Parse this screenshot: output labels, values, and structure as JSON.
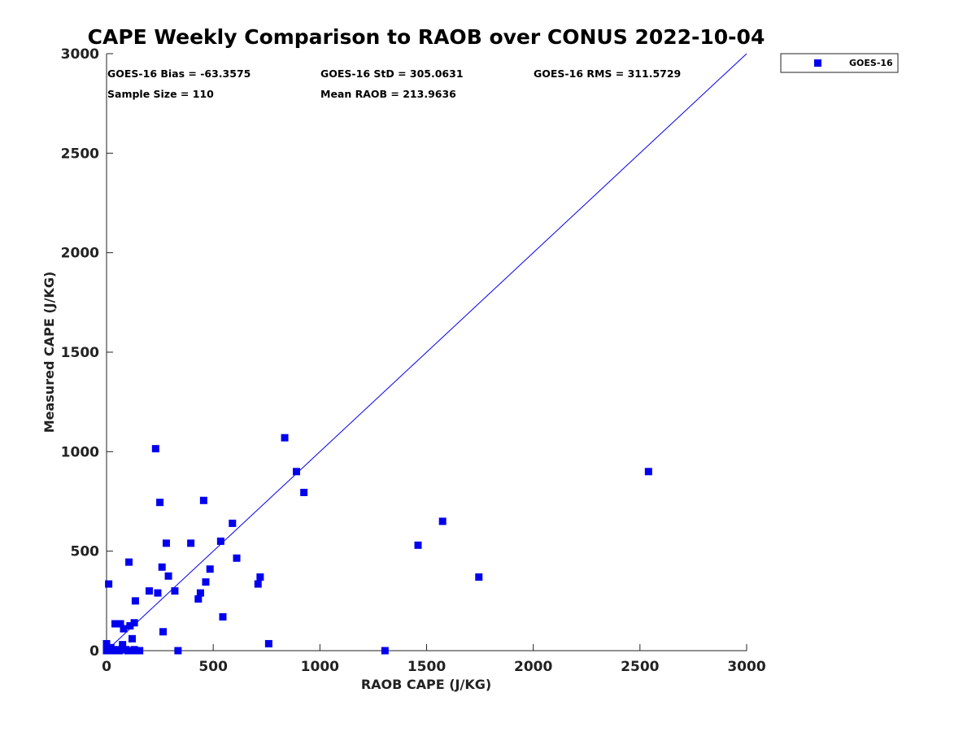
{
  "colors": {
    "series": "#0000ee",
    "axis": "#222222",
    "background": "#ffffff"
  },
  "chart_data": {
    "type": "scatter",
    "title": "CAPE Weekly Comparison to RAOB over CONUS 2022-10-04",
    "xlabel": "RAOB CAPE (J/KG)",
    "ylabel": "Measured CAPE (J/KG)",
    "xlim": [
      0,
      3000
    ],
    "ylim": [
      0,
      3000
    ],
    "xticks": [
      0,
      500,
      1000,
      1500,
      2000,
      2500,
      3000
    ],
    "yticks": [
      0,
      500,
      1000,
      1500,
      2000,
      2500,
      3000
    ],
    "grid": false,
    "legend": {
      "position": "top-right-outside",
      "entries": [
        "GOES-16"
      ]
    },
    "stats": {
      "bias": "GOES-16 Bias = -63.3575",
      "std": "GOES-16 StD = 305.0631",
      "rms": "GOES-16 RMS = 311.5729",
      "sample_size": "Sample Size = 110",
      "mean_raob": "Mean RAOB = 213.9636"
    },
    "reference_line": {
      "label": "1:1 line",
      "points": [
        [
          0,
          0
        ],
        [
          3000,
          3000
        ]
      ]
    },
    "series": [
      {
        "name": "GOES-16",
        "marker": "square",
        "points": [
          [
            230,
            1015
          ],
          [
            835,
            1070
          ],
          [
            890,
            900
          ],
          [
            925,
            795
          ],
          [
            2540,
            900
          ],
          [
            1575,
            650
          ],
          [
            1460,
            530
          ],
          [
            1745,
            370
          ],
          [
            1305,
            0
          ],
          [
            250,
            745
          ],
          [
            455,
            755
          ],
          [
            590,
            640
          ],
          [
            395,
            540
          ],
          [
            280,
            540
          ],
          [
            535,
            550
          ],
          [
            105,
            445
          ],
          [
            260,
            420
          ],
          [
            485,
            410
          ],
          [
            610,
            465
          ],
          [
            290,
            375
          ],
          [
            720,
            370
          ],
          [
            465,
            345
          ],
          [
            710,
            335
          ],
          [
            10,
            335
          ],
          [
            200,
            300
          ],
          [
            240,
            290
          ],
          [
            320,
            300
          ],
          [
            440,
            290
          ],
          [
            430,
            260
          ],
          [
            135,
            250
          ],
          [
            545,
            170
          ],
          [
            265,
            95
          ],
          [
            760,
            35
          ],
          [
            335,
            0
          ],
          [
            40,
            135
          ],
          [
            65,
            135
          ],
          [
            80,
            110
          ],
          [
            110,
            125
          ],
          [
            130,
            140
          ],
          [
            120,
            60
          ],
          [
            75,
            30
          ],
          [
            0,
            35
          ],
          [
            20,
            15
          ],
          [
            5,
            5
          ],
          [
            30,
            0
          ],
          [
            45,
            5
          ],
          [
            60,
            0
          ],
          [
            90,
            5
          ],
          [
            100,
            0
          ],
          [
            115,
            0
          ],
          [
            130,
            5
          ],
          [
            145,
            0
          ],
          [
            155,
            0
          ],
          [
            10,
            0
          ],
          [
            0,
            0
          ]
        ]
      }
    ]
  }
}
